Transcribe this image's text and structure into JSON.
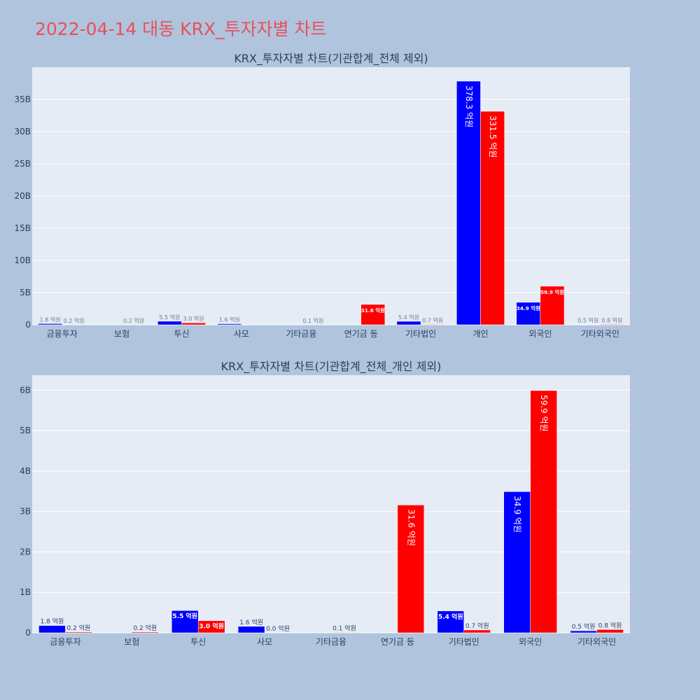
{
  "page_title": "2022-04-14 대동 KRX_투자자별 차트",
  "colors": {
    "buy": "#0000ff",
    "sell": "#ff0000",
    "title": "#e8505b"
  },
  "chart_data": [
    {
      "type": "bar",
      "title": "KRX_투자자별 차트(기관합계_전체 제외)",
      "categories": [
        "금융투자",
        "보험",
        "투신",
        "사모",
        "기타금융",
        "연기금 등",
        "기타법인",
        "개인",
        "외국인",
        "기타외국인"
      ],
      "series": [
        {
          "values": [
            0.18,
            0,
            0.55,
            0.16,
            0,
            0,
            0.54,
            37.83,
            3.49,
            0.05
          ],
          "labels": [
            "1.8 억원",
            "",
            "5.5 억원",
            "1.6 억원",
            "",
            "",
            "5.4 억원",
            "378.3 억원",
            "34.9 억원",
            "0.5 억원"
          ]
        },
        {
          "values": [
            0.02,
            0.02,
            0.3,
            0,
            0.01,
            3.16,
            0.07,
            33.15,
            5.99,
            0.08
          ],
          "labels": [
            "0.2 억원",
            "0.2 억원",
            "3.0 억원",
            "",
            "0.1 억원",
            "31.6 억원",
            "0.7 억원",
            "331.5 억원",
            "59.9 억원",
            "0.8 억원"
          ]
        }
      ],
      "ylim": [
        0,
        40
      ],
      "yticks": [
        0,
        5,
        10,
        15,
        20,
        25,
        30,
        35
      ],
      "ytick_labels": [
        "0",
        "5B",
        "10B",
        "15B",
        "20B",
        "25B",
        "30B",
        "35B"
      ]
    },
    {
      "type": "bar",
      "title": "KRX_투자자별 차트(기관합계_전체_개인 제외)",
      "categories": [
        "금융투자",
        "보험",
        "투신",
        "사모",
        "기타금융",
        "연기금 등",
        "기타법인",
        "외국인",
        "기타외국인"
      ],
      "series": [
        {
          "values": [
            0.18,
            0,
            0.55,
            0.16,
            0,
            0,
            0.54,
            3.49,
            0.05
          ],
          "labels": [
            "1.8 억원",
            "",
            "5.5 억원",
            "1.6 억원",
            "",
            "",
            "5.4 억원",
            "34.9 억원",
            "0.5 억원"
          ]
        },
        {
          "values": [
            0.02,
            0.02,
            0.3,
            0.0,
            0.01,
            3.16,
            0.07,
            5.99,
            0.08
          ],
          "labels": [
            "0.2 억원",
            "0.2 억원",
            "3.0 억원",
            "0.0 억원",
            "0.1 억원",
            "31.6 억원",
            "0.7 억원",
            "59.9 억원",
            "0.8 억원"
          ]
        }
      ],
      "ylim": [
        0,
        6.37
      ],
      "yticks": [
        0,
        1,
        2,
        3,
        4,
        5,
        6
      ],
      "ytick_labels": [
        "0",
        "1B",
        "2B",
        "3B",
        "4B",
        "5B",
        "6B"
      ]
    }
  ]
}
